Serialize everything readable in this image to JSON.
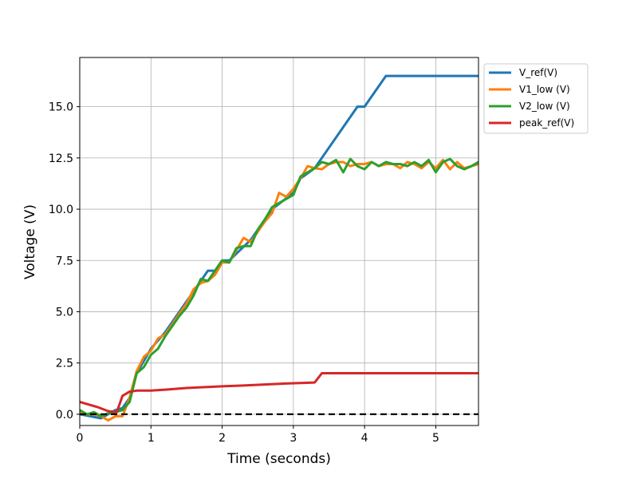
{
  "chart_data": {
    "type": "line",
    "xlabel": "Time (seconds)",
    "ylabel": "Voltage (V)",
    "xlim": [
      0,
      5.6
    ],
    "ylim": [
      -0.55,
      17.4
    ],
    "x_ticks": [
      0,
      1,
      2,
      3,
      4,
      5
    ],
    "x_tick_labels": [
      "0",
      "1",
      "2",
      "3",
      "4",
      "5"
    ],
    "y_ticks": [
      0,
      2.5,
      5,
      7.5,
      10,
      12.5,
      15
    ],
    "y_tick_labels": [
      "0.0",
      "2.5",
      "5.0",
      "7.5",
      "10.0",
      "12.5",
      "15.0"
    ],
    "grid": true,
    "legend_position": "outside-upper-right",
    "series": [
      {
        "name": "V_ref(V)",
        "color": "#1f77b4",
        "x": [
          0,
          0.3,
          0.5,
          0.6,
          0.7,
          0.8,
          1.0,
          1.2,
          1.5,
          1.8,
          1.9,
          2.0,
          2.1,
          2.4,
          2.7,
          3.0,
          3.1,
          3.3,
          3.9,
          4.0,
          4.3,
          5.6
        ],
        "y": [
          0,
          -0.2,
          0.2,
          0.3,
          0.8,
          2.0,
          3.2,
          4.0,
          5.5,
          7.0,
          7.0,
          7.5,
          7.5,
          8.5,
          10.0,
          10.8,
          11.5,
          12.0,
          15.0,
          15.0,
          16.5,
          16.5
        ]
      },
      {
        "name": "V1_low (V)",
        "color": "#ff7f0e",
        "x": [
          0,
          0.1,
          0.2,
          0.3,
          0.4,
          0.5,
          0.6,
          0.7,
          0.8,
          0.9,
          1.0,
          1.1,
          1.2,
          1.3,
          1.4,
          1.5,
          1.6,
          1.7,
          1.8,
          1.9,
          2.0,
          2.1,
          2.2,
          2.3,
          2.4,
          2.5,
          2.6,
          2.7,
          2.8,
          2.9,
          3.0,
          3.1,
          3.2,
          3.3,
          3.4,
          3.5,
          3.6,
          3.7,
          3.8,
          3.9,
          4.0,
          4.1,
          4.2,
          4.3,
          4.4,
          4.5,
          4.6,
          4.7,
          4.8,
          4.9,
          5.0,
          5.1,
          5.2,
          5.3,
          5.4,
          5.5,
          5.6
        ],
        "y": [
          0.05,
          0.0,
          0.0,
          -0.1,
          -0.3,
          -0.1,
          -0.1,
          0.8,
          2.1,
          2.8,
          3.1,
          3.7,
          3.9,
          4.4,
          4.9,
          5.4,
          6.1,
          6.4,
          6.5,
          6.8,
          7.4,
          7.4,
          8.0,
          8.6,
          8.4,
          8.9,
          9.4,
          9.8,
          10.8,
          10.6,
          11.0,
          11.5,
          12.1,
          12.0,
          11.95,
          12.2,
          12.3,
          12.3,
          12.1,
          12.2,
          12.2,
          12.3,
          12.1,
          12.2,
          12.2,
          12.0,
          12.3,
          12.2,
          12.0,
          12.3,
          12.0,
          12.4,
          11.95,
          12.3,
          12.0,
          12.1,
          12.2
        ]
      },
      {
        "name": "V2_low (V)",
        "color": "#2ca02c",
        "x": [
          0,
          0.1,
          0.2,
          0.3,
          0.4,
          0.5,
          0.6,
          0.7,
          0.8,
          0.9,
          1.0,
          1.1,
          1.2,
          1.3,
          1.4,
          1.5,
          1.6,
          1.7,
          1.8,
          1.9,
          2.0,
          2.1,
          2.2,
          2.3,
          2.4,
          2.5,
          2.6,
          2.7,
          2.8,
          2.9,
          3.0,
          3.1,
          3.2,
          3.3,
          3.4,
          3.5,
          3.6,
          3.7,
          3.8,
          3.9,
          4.0,
          4.1,
          4.2,
          4.3,
          4.4,
          4.5,
          4.6,
          4.7,
          4.8,
          4.9,
          5.0,
          5.1,
          5.2,
          5.3,
          5.4,
          5.5,
          5.6
        ],
        "y": [
          0.2,
          0.0,
          0.1,
          -0.1,
          0.05,
          0.1,
          0.2,
          0.6,
          2.0,
          2.3,
          2.9,
          3.2,
          3.8,
          4.3,
          4.8,
          5.2,
          5.8,
          6.6,
          6.5,
          7.0,
          7.5,
          7.4,
          8.1,
          8.2,
          8.2,
          9.0,
          9.5,
          10.1,
          10.3,
          10.5,
          10.7,
          11.6,
          11.8,
          12.0,
          12.3,
          12.2,
          12.4,
          11.8,
          12.45,
          12.1,
          11.95,
          12.3,
          12.1,
          12.3,
          12.2,
          12.2,
          12.1,
          12.3,
          12.1,
          12.4,
          11.8,
          12.3,
          12.45,
          12.1,
          11.95,
          12.1,
          12.3
        ]
      },
      {
        "name": "peak_ref(V)",
        "color": "#d62728",
        "x": [
          0,
          0.25,
          0.4,
          0.52,
          0.6,
          0.7,
          0.8,
          1.0,
          1.2,
          1.5,
          1.8,
          2.0,
          2.3,
          2.6,
          2.9,
          3.1,
          3.3,
          3.4,
          5.6
        ],
        "y": [
          0.6,
          0.35,
          0.15,
          0.1,
          0.9,
          1.1,
          1.15,
          1.15,
          1.2,
          1.28,
          1.33,
          1.36,
          1.4,
          1.45,
          1.5,
          1.52,
          1.55,
          2.0,
          2.0
        ]
      }
    ],
    "reference_lines": [
      {
        "y": 0,
        "style": "dashed",
        "color": "#000000"
      }
    ]
  }
}
